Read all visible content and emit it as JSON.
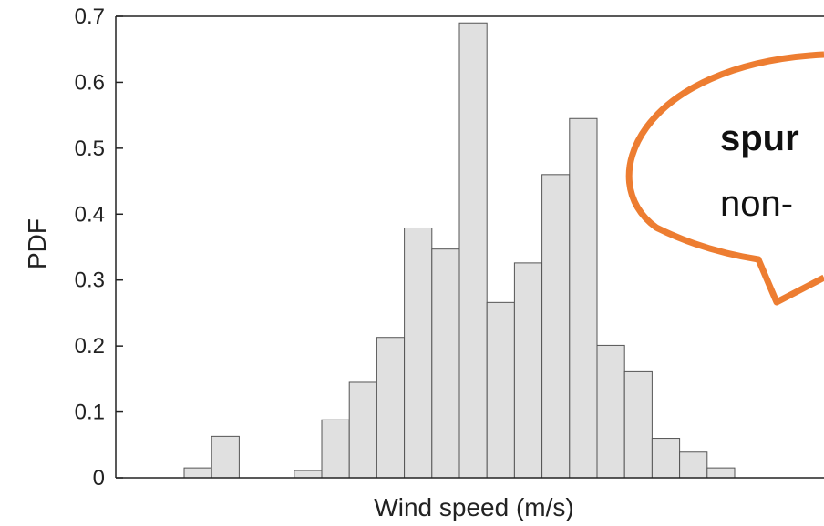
{
  "chart_data": {
    "type": "bar",
    "xlabel": "Wind speed (m/s)",
    "ylabel": "PDF",
    "ylim": [
      0,
      0.7
    ],
    "yticks": [
      0,
      0.1,
      0.2,
      0.3,
      0.4,
      0.5,
      0.6,
      0.7
    ],
    "ytick_labels": [
      "0",
      "0.1",
      "0.2",
      "0.3",
      "0.4",
      "0.5",
      "0.6",
      "0.7"
    ],
    "grid": false,
    "bar_color": "#e0e0e0",
    "bar_edge_color": "#555555",
    "bins": 23,
    "values": [
      0.015,
      0.063,
      0,
      0,
      0.011,
      0.088,
      0.145,
      0.213,
      0.379,
      0.347,
      0.69,
      0.266,
      0.326,
      0.46,
      0.545,
      0.201,
      0.161,
      0.06,
      0.039,
      0.015,
      0,
      0,
      0
    ]
  },
  "callout": {
    "line1": "spur",
    "line2": "non-",
    "border_color": "#ed7d31"
  }
}
